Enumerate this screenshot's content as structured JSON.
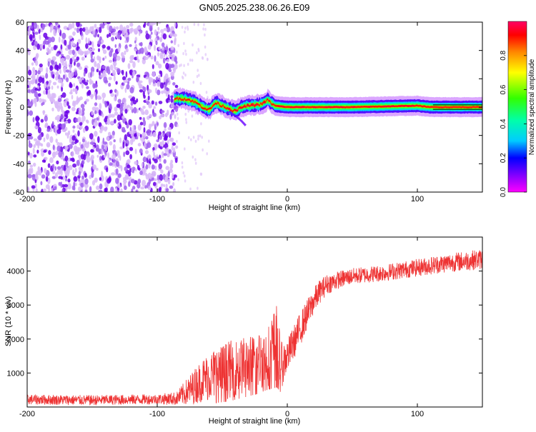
{
  "title": "GN05.2025.238.06.26.E09",
  "chart_data": [
    {
      "type": "heatmap",
      "name": "spectrogram",
      "xlabel": "Height of straight line (km)",
      "ylabel": "Frequency (Hz)",
      "xlim": [
        -200,
        150
      ],
      "ylim": [
        -60,
        60
      ],
      "xticks": [
        -200,
        -100,
        0,
        100
      ],
      "yticks": [
        -60,
        -40,
        -20,
        0,
        20,
        40,
        60
      ],
      "colorbar": {
        "label": "Normalized spectral amplitude",
        "range": [
          0,
          1
        ],
        "ticks": [
          0.0,
          0.2,
          0.4,
          0.6,
          0.8
        ],
        "tick_labels": [
          "0.0",
          "0.2",
          "0.4",
          "0.6",
          "0.8"
        ]
      },
      "noise_region": {
        "x_from": -200,
        "x_to": -85,
        "freq_range": [
          -60,
          60
        ],
        "amplitude": 0.08
      },
      "ridge": [
        {
          "x": -87,
          "f": 6
        },
        {
          "x": -80,
          "f": 6
        },
        {
          "x": -75,
          "f": 5
        },
        {
          "x": -70,
          "f": 3
        },
        {
          "x": -65,
          "f": 0
        },
        {
          "x": -60,
          "f": -2
        },
        {
          "x": -55,
          "f": 3
        },
        {
          "x": -50,
          "f": 1
        },
        {
          "x": -45,
          "f": -1
        },
        {
          "x": -40,
          "f": -3
        },
        {
          "x": -35,
          "f": 0
        },
        {
          "x": -30,
          "f": 1
        },
        {
          "x": -20,
          "f": 2
        },
        {
          "x": -15,
          "f": 5
        },
        {
          "x": -10,
          "f": 1
        },
        {
          "x": 0,
          "f": 0
        },
        {
          "x": 50,
          "f": 0
        },
        {
          "x": 100,
          "f": 1
        },
        {
          "x": 110,
          "f": 0
        },
        {
          "x": 150,
          "f": 0
        }
      ]
    },
    {
      "type": "line",
      "name": "snr",
      "xlabel": "Height of straight line (km)",
      "ylabel": "SNR (10 * v/v)",
      "xlim": [
        -200,
        150
      ],
      "ylim": [
        0,
        5000
      ],
      "xticks": [
        -200,
        -100,
        0,
        100
      ],
      "yticks": [
        1000,
        2000,
        3000,
        4000
      ],
      "color": "#ee3333",
      "series": [
        {
          "name": "SNR",
          "x": [
            -200,
            -150,
            -100,
            -85,
            -75,
            -65,
            -55,
            -45,
            -35,
            -25,
            -15,
            -8,
            -5,
            0,
            5,
            10,
            15,
            20,
            25,
            30,
            40,
            50,
            75,
            100,
            125,
            150
          ],
          "y": [
            220,
            200,
            230,
            250,
            500,
            800,
            1000,
            1100,
            1200,
            1300,
            1500,
            1900,
            1200,
            1500,
            1900,
            2300,
            2700,
            3100,
            3400,
            3600,
            3750,
            3850,
            3950,
            4100,
            4250,
            4350
          ],
          "noise_amplitude": [
            150,
            150,
            150,
            200,
            450,
            650,
            800,
            850,
            850,
            850,
            900,
            1200,
            700,
            500,
            500,
            500,
            450,
            400,
            350,
            300,
            260,
            240,
            250,
            260,
            280,
            300
          ]
        }
      ]
    }
  ]
}
